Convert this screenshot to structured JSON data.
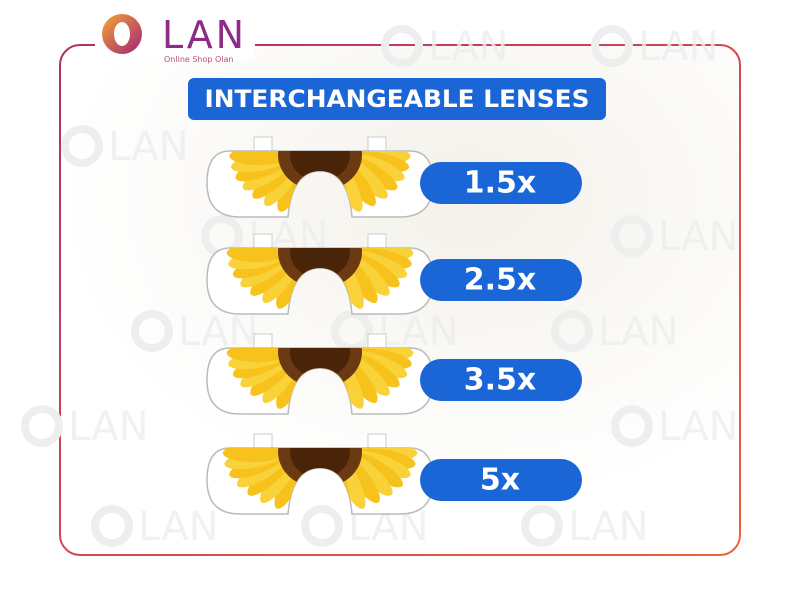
{
  "logo": {
    "name": "LAN",
    "tagline": "Online Shop Olan"
  },
  "watermark": "LAN",
  "title": "INTERCHANGEABLE LENSES",
  "lenses": [
    {
      "label": "1.5x"
    },
    {
      "label": "2.5x"
    },
    {
      "label": "3.5x"
    },
    {
      "label": "5x"
    }
  ]
}
